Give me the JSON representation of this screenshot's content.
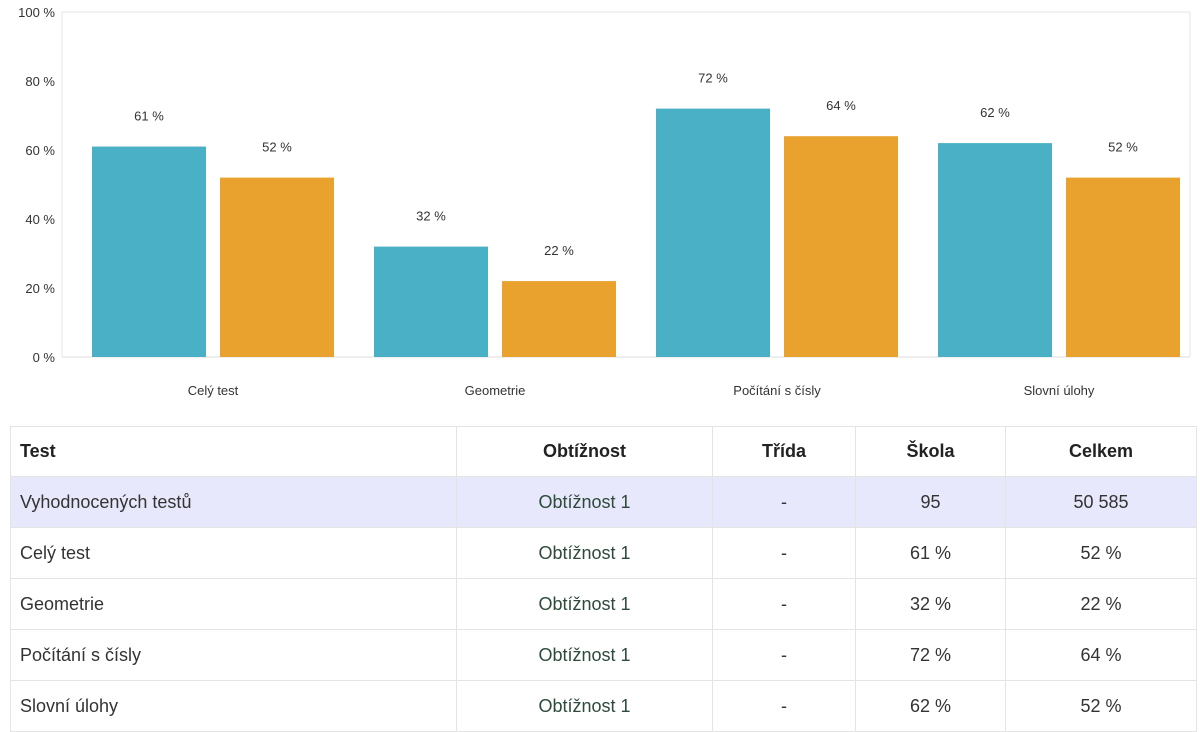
{
  "chart_data": {
    "type": "bar",
    "categories": [
      "Celý test",
      "Geometrie",
      "Počítání s čísly",
      "Slovní úlohy"
    ],
    "series": [
      {
        "values": [
          61,
          32,
          72,
          62
        ],
        "labels": [
          "61 %",
          "32 %",
          "72 %",
          "62 %"
        ],
        "color": "#4ab0c5"
      },
      {
        "values": [
          52,
          22,
          64,
          52
        ],
        "labels": [
          "52 %",
          "22 %",
          "64 %",
          "52 %"
        ],
        "color": "#e8a22d"
      }
    ],
    "ylim": [
      0,
      100
    ],
    "yticks": [
      0,
      20,
      40,
      60,
      80,
      100
    ],
    "ytick_labels": [
      "0 %",
      "20 %",
      "40 %",
      "60 %",
      "80 %",
      "100 %"
    ],
    "grid": false,
    "legend": "none"
  },
  "table": {
    "headers": [
      "Test",
      "Obtížnost",
      "Třída",
      "Škola",
      "Celkem"
    ],
    "rows": [
      [
        "Vyhodnocených testů",
        "Obtížnost 1",
        "-",
        "95",
        "50 585"
      ],
      [
        "Celý test",
        "Obtížnost 1",
        "-",
        "61 %",
        "52 %"
      ],
      [
        "Geometrie",
        "Obtížnost 1",
        "-",
        "32 %",
        "22 %"
      ],
      [
        "Počítání s čísly",
        "Obtížnost 1",
        "-",
        "72 %",
        "64 %"
      ],
      [
        "Slovní úlohy",
        "Obtížnost 1",
        "-",
        "62 %",
        "52 %"
      ]
    ],
    "highlight_color": "#e8e8fc"
  }
}
